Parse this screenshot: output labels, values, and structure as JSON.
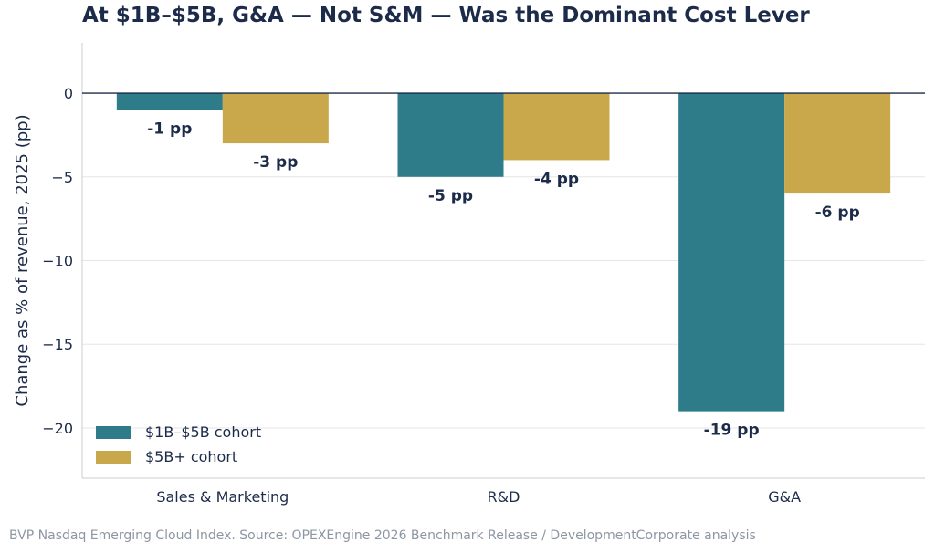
{
  "chart_data": {
    "type": "bar",
    "title": "At $1B–$5B, G&A — Not S&M — Was the Dominant Cost Lever",
    "ylabel": "Change as % of revenue, 2025 (pp)",
    "xlabel": "",
    "categories": [
      "Sales & Marketing",
      "R&D",
      "G&A"
    ],
    "series": [
      {
        "name": "$1B–$5B cohort",
        "color": "#2e7b8a",
        "values": [
          -1,
          -5,
          -19
        ],
        "labels": [
          "-1 pp",
          "-5 pp",
          "-19 pp"
        ]
      },
      {
        "name": "$5B+ cohort",
        "color": "#c8a84b",
        "values": [
          -3,
          -4,
          -6
        ],
        "labels": [
          "-3 pp",
          "-4 pp",
          "-6 pp"
        ]
      }
    ],
    "ylim": [
      -23,
      3
    ],
    "yticks": [
      0,
      -5,
      -10,
      -15,
      -20
    ],
    "ytick_labels": [
      "0",
      "−5",
      "−10",
      "−15",
      "−20"
    ],
    "grid": true,
    "legend_position": "lower-left"
  },
  "source": "BVP Nasdaq Emerging Cloud Index. Source: OPEXEngine 2026 Benchmark Release / DevelopmentCorporate analysis"
}
